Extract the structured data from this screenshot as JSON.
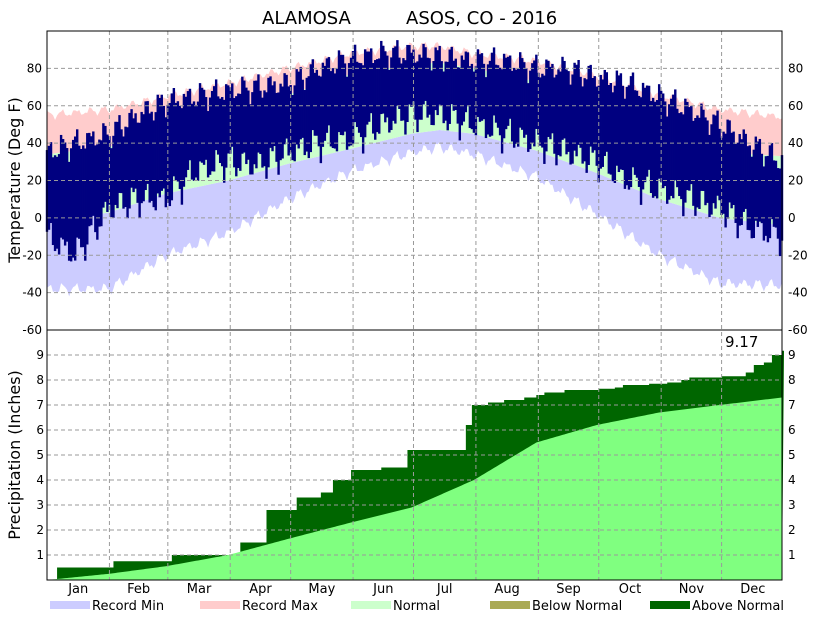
{
  "chart_data": {
    "type": "area",
    "title_station": "ALAMOSA",
    "title_network": "ASOS, CO - 2016",
    "months": [
      "Jan",
      "Feb",
      "Mar",
      "Apr",
      "May",
      "Jun",
      "Jul",
      "Aug",
      "Sep",
      "Oct",
      "Nov",
      "Dec"
    ],
    "colors": {
      "record_min": "#ccccff",
      "record_max": "#ffcccc",
      "normal": "#ccffcc",
      "observed": "#000080",
      "below_normal": "#aaaa55",
      "above_normal": "#006600",
      "normal_precip": "#80ff80"
    },
    "temperature_panel": {
      "ylabel": "Temperature (Deg F)",
      "ylim": [
        -60,
        100
      ],
      "ticks": [
        -60,
        -40,
        -20,
        0,
        20,
        40,
        60,
        80
      ],
      "grid": true,
      "record_max": {
        "x": [
          1,
          32,
          60,
          91,
          121,
          152,
          182,
          196,
          213,
          244,
          274,
          305,
          335,
          366
        ],
        "y": [
          55,
          58,
          65,
          72,
          80,
          88,
          92,
          92,
          88,
          84,
          76,
          66,
          58,
          54
        ]
      },
      "normal_high": {
        "x": [
          1,
          32,
          60,
          91,
          121,
          152,
          182,
          196,
          213,
          244,
          274,
          305,
          335,
          366
        ],
        "y": [
          34,
          38,
          47,
          57,
          66,
          77,
          82,
          83,
          80,
          73,
          61,
          46,
          35,
          33
        ]
      },
      "normal_low": {
        "x": [
          1,
          32,
          60,
          91,
          121,
          152,
          182,
          196,
          213,
          244,
          274,
          305,
          335,
          366
        ],
        "y": [
          -3,
          3,
          13,
          20,
          29,
          37,
          45,
          47,
          45,
          36,
          24,
          10,
          0,
          -4
        ]
      },
      "record_min": {
        "x": [
          1,
          32,
          60,
          91,
          121,
          152,
          182,
          196,
          213,
          244,
          274,
          305,
          335,
          366
        ],
        "y": [
          -38,
          -38,
          -20,
          -8,
          10,
          25,
          35,
          38,
          34,
          22,
          2,
          -20,
          -35,
          -36
        ]
      },
      "observed_high": {
        "x": [
          1,
          15,
          32,
          46,
          60,
          75,
          91,
          106,
          121,
          136,
          152,
          167,
          182,
          196,
          213,
          228,
          244,
          259,
          274,
          289,
          305,
          320,
          335,
          350,
          366
        ],
        "y": [
          35,
          40,
          45,
          55,
          62,
          65,
          68,
          70,
          72,
          80,
          85,
          88,
          88,
          86,
          84,
          84,
          80,
          80,
          75,
          72,
          65,
          58,
          50,
          40,
          30
        ]
      },
      "observed_low": {
        "x": [
          1,
          15,
          32,
          46,
          60,
          75,
          91,
          106,
          121,
          136,
          152,
          167,
          182,
          196,
          213,
          228,
          244,
          259,
          274,
          289,
          305,
          320,
          335,
          350,
          366
        ],
        "y": [
          -10,
          -20,
          5,
          10,
          10,
          25,
          30,
          28,
          35,
          40,
          42,
          50,
          55,
          55,
          50,
          45,
          40,
          35,
          30,
          20,
          15,
          10,
          5,
          -5,
          -10
        ]
      }
    },
    "precip_panel": {
      "ylabel": "Precipitation (Inches)",
      "ylim": [
        0,
        10
      ],
      "ticks": [
        1,
        2,
        3,
        4,
        5,
        6,
        7,
        8,
        9
      ],
      "total_label": "9.17",
      "normal_cumulative": {
        "x": [
          1,
          32,
          60,
          91,
          121,
          152,
          182,
          213,
          244,
          274,
          305,
          335,
          366
        ],
        "y": [
          0.0,
          0.25,
          0.55,
          1.0,
          1.65,
          2.3,
          2.9,
          4.0,
          5.5,
          6.2,
          6.7,
          7.0,
          7.3
        ]
      },
      "observed_cumulative": {
        "x": [
          1,
          6,
          30,
          34,
          58,
          63,
          91,
          97,
          110,
          125,
          137,
          143,
          152,
          167,
          175,
          180,
          206,
          209,
          212,
          220,
          228,
          238,
          244,
          248,
          258,
          275,
          283,
          287,
          300,
          309,
          316,
          320,
          336,
          348,
          352,
          357,
          361,
          366
        ],
        "y": [
          0.0,
          0.5,
          0.5,
          0.75,
          0.75,
          1.0,
          1.0,
          1.5,
          2.8,
          3.3,
          3.5,
          4.0,
          4.4,
          4.5,
          4.5,
          5.2,
          5.2,
          6.2,
          7.0,
          7.1,
          7.2,
          7.3,
          7.4,
          7.5,
          7.6,
          7.65,
          7.7,
          7.8,
          7.85,
          7.9,
          8.0,
          8.1,
          8.15,
          8.3,
          8.6,
          8.7,
          9.0,
          9.17
        ]
      }
    },
    "legend": [
      {
        "label": "Record Min",
        "color": "#ccccff"
      },
      {
        "label": "Record Max",
        "color": "#ffcccc"
      },
      {
        "label": "Normal",
        "color": "#ccffcc"
      },
      {
        "label": "Below Normal",
        "color": "#aaaa55"
      },
      {
        "label": "Above Normal",
        "color": "#006600"
      }
    ]
  }
}
